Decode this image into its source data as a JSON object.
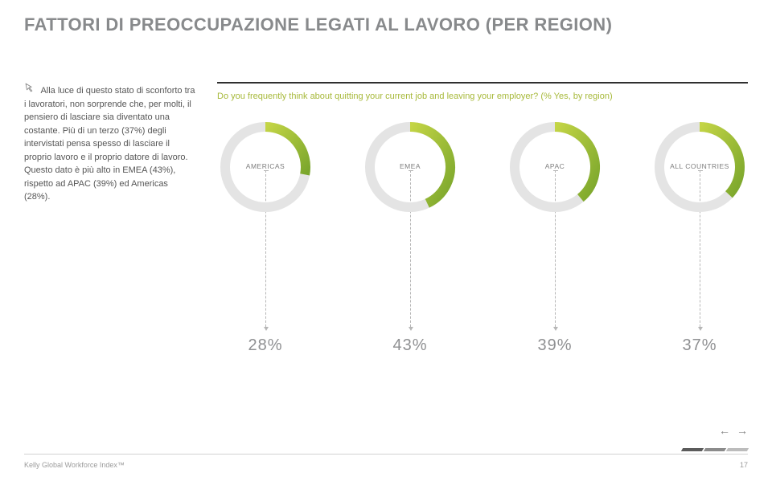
{
  "page": {
    "title": "FATTORI DI PREOCCUPAZIONE LEGATI AL LAVORO (PER REGION)",
    "bodyText": " Alla luce di questo stato di sconforto tra i lavoratori, non sorprende che, per molti, il pensiero di lasciare sia diventato una costante. Più di un terzo (37%) degli intervistati pensa spesso di lasciare il proprio lavoro e il proprio datore di lavoro. Questo dato è più alto in EMEA (43%), rispetto ad APAC (39%) ed Americas (28%).",
    "question": "Do you frequently think about quitting your current job and leaving your employer? (% Yes, by region)"
  },
  "charts": {
    "type": "donut-row",
    "ring_thickness": 12,
    "outer_radius": 56,
    "track_color": "#e4e4e4",
    "arc_color_start": "#c4d546",
    "arc_color_end": "#7aa62c",
    "label_fontsize": 8.5,
    "pct_fontsize": 20,
    "pct_color": "#8f9092",
    "items": [
      {
        "label": "AMERICAS",
        "value": 28
      },
      {
        "label": "EMEA",
        "value": 43
      },
      {
        "label": "APAC",
        "value": 39
      },
      {
        "label": "ALL COUNTRIES",
        "value": 37
      }
    ]
  },
  "footer": {
    "source": "Kelly Global Workforce Index™",
    "pageNumber": "17",
    "skew_colors": [
      "#5b5b5b",
      "#8b8b8b",
      "#bcbcbc"
    ]
  },
  "nav": {
    "prev": "←",
    "next": "→"
  },
  "icons": {
    "lead_arrow_color": "#8a8a8a"
  }
}
